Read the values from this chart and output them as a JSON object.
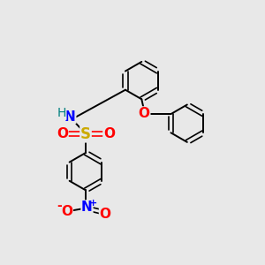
{
  "bg_color": "#e8e8e8",
  "atom_colors": {
    "C": "#000000",
    "N": "#0000ff",
    "O": "#ff0000",
    "S": "#ccaa00",
    "H": "#008080"
  },
  "bond_color": "#000000",
  "figsize": [
    3.0,
    3.0
  ],
  "dpi": 100,
  "lw": 1.4,
  "r": 0.72
}
